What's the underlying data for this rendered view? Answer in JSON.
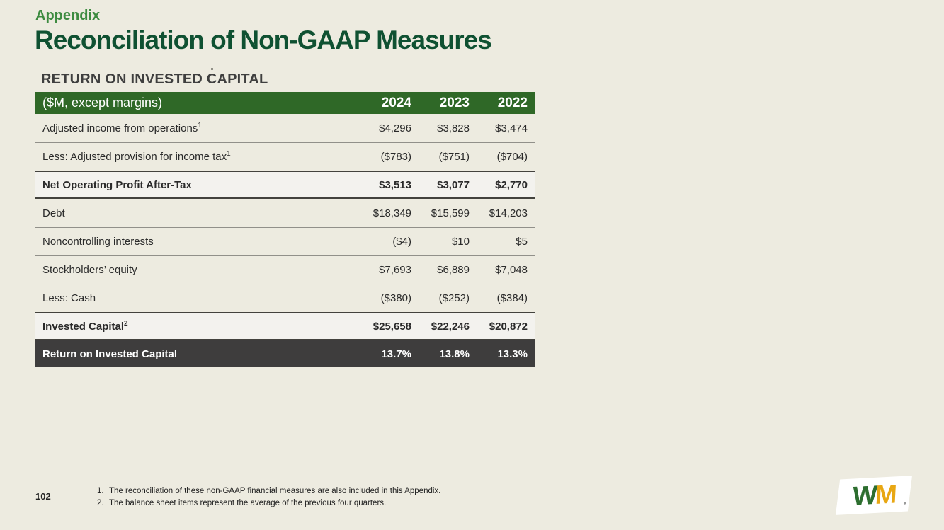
{
  "page": {
    "appendix_label": "Appendix",
    "title": "Reconciliation of Non-GAAP Measures",
    "page_number": "102"
  },
  "table": {
    "heading": "RETURN ON INVESTED CAPITAL",
    "unit_label": "($M, except margins)",
    "years": [
      "2024",
      "2023",
      "2022"
    ],
    "rows": [
      {
        "label": "Adjusted income from operations",
        "sup": "1",
        "values": [
          "$4,296",
          "$3,828",
          "$3,474"
        ]
      },
      {
        "label": "Less: Adjusted provision for income tax",
        "sup": "1",
        "values": [
          "($783)",
          "($751)",
          "($704)"
        ]
      },
      {
        "label": "Net Operating Profit After-Tax",
        "sup": "",
        "values": [
          "$3,513",
          "$3,077",
          "$2,770"
        ]
      },
      {
        "label": "Debt",
        "sup": "",
        "values": [
          "$18,349",
          "$15,599",
          "$14,203"
        ]
      },
      {
        "label": "Noncontrolling interests",
        "sup": "",
        "values": [
          "($4)",
          "$10",
          "$5"
        ]
      },
      {
        "label": "Stockholders’ equity",
        "sup": "",
        "values": [
          "$7,693",
          "$6,889",
          "$7,048"
        ]
      },
      {
        "label": "Less: Cash",
        "sup": "",
        "values": [
          "($380)",
          "($252)",
          "($384)"
        ]
      },
      {
        "label": "Invested Capital",
        "sup": "2",
        "values": [
          "$25,658",
          "$22,246",
          "$20,872"
        ]
      },
      {
        "label": "Return on Invested Capital",
        "sup": "",
        "values": [
          "13.7%",
          "13.8%",
          "13.3%"
        ]
      }
    ]
  },
  "footnotes": [
    {
      "num": "1.",
      "text": "The reconciliation of these non-GAAP financial measures are also included in this Appendix."
    },
    {
      "num": "2.",
      "text": "The balance sheet items represent the average of the previous four quarters."
    }
  ],
  "logo": {
    "letter_w": "W",
    "letter_m": "M"
  },
  "colors": {
    "background": "#edebe0",
    "appendix_green": "#3d8b40",
    "title_green": "#0f5132",
    "table_header_green": "#2f6827",
    "subtotal_row_bg": "#f3f2ee",
    "total_row_gray": "#3e3d3d",
    "logo_green": "#2d6e2f",
    "logo_yellow": "#e8a713"
  }
}
